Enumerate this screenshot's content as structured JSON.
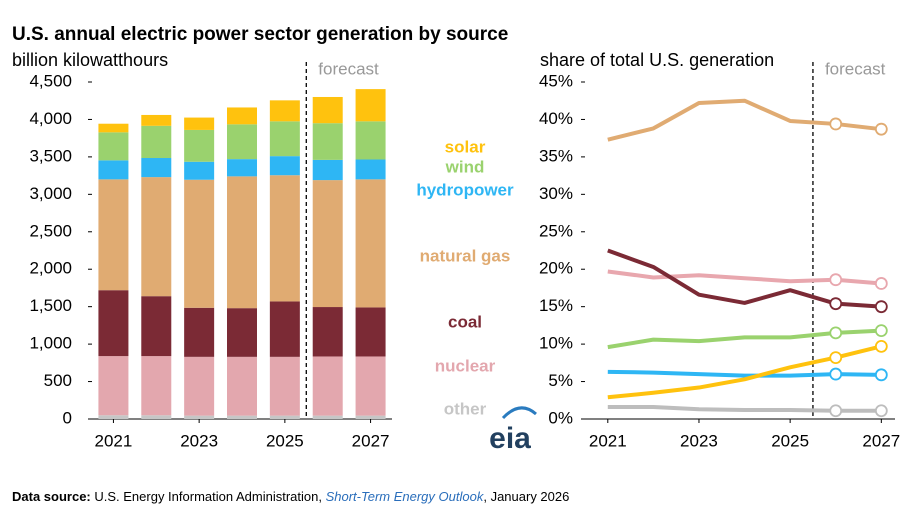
{
  "chart_data": [
    {
      "type": "stacked_bar",
      "title": "U.S. annual electric power sector generation by source",
      "subtitle": "billion kilowatthours",
      "annotation": "forecast",
      "forecast_from": 2026,
      "x": [
        2021,
        2022,
        2023,
        2024,
        2025,
        2026,
        2027
      ],
      "xlim": [
        2020.5,
        2027.5
      ],
      "xticks": [
        2021,
        2023,
        2025,
        2027
      ],
      "ylim": [
        0,
        4500
      ],
      "yticks": [
        0,
        500,
        {
          "value": 1000,
          "label": "1,000"
        },
        {
          "value": 1500,
          "label": "1,500"
        },
        {
          "value": 2000,
          "label": "2,000"
        },
        {
          "value": 2500,
          "label": "2,500"
        },
        {
          "value": 3000,
          "label": "3,000"
        },
        {
          "value": 3500,
          "label": "3,500"
        },
        {
          "value": 4000,
          "label": "4,000"
        },
        {
          "value": 4500,
          "label": "4,500"
        }
      ],
      "legend": "right",
      "series": [
        {
          "name": "other",
          "color": "#c6c6c6",
          "values": [
            50,
            50,
            45,
            45,
            45,
            45,
            45
          ]
        },
        {
          "name": "nuclear",
          "color": "#e3a7ae",
          "values": [
            790,
            790,
            785,
            785,
            785,
            790,
            790
          ]
        },
        {
          "name": "coal",
          "color": "#7b2a35",
          "values": [
            880,
            800,
            655,
            650,
            740,
            660,
            655
          ]
        },
        {
          "name": "natural gas",
          "color": "#e0ab72",
          "values": [
            1480,
            1590,
            1710,
            1760,
            1685,
            1695,
            1710
          ]
        },
        {
          "name": "hydropower",
          "color": "#2eb6f4",
          "values": [
            254,
            255,
            240,
            230,
            255,
            270,
            265
          ]
        },
        {
          "name": "wind",
          "color": "#9ad26e",
          "values": [
            374,
            430,
            425,
            465,
            465,
            490,
            510
          ]
        },
        {
          "name": "solar",
          "color": "#ffc20e",
          "values": [
            115,
            145,
            165,
            225,
            280,
            350,
            430
          ]
        }
      ]
    },
    {
      "type": "line",
      "subtitle": "share of total U.S. generation",
      "annotation": "forecast",
      "forecast_from": 2026,
      "x": [
        2021,
        2022,
        2023,
        2024,
        2025,
        2026,
        2027
      ],
      "xlim": [
        2020.5,
        2027.3
      ],
      "xticks": [
        2021,
        2023,
        2025,
        2027
      ],
      "ylim": [
        0,
        45
      ],
      "yticks": [
        {
          "value": 0,
          "label": "0%"
        },
        {
          "value": 5,
          "label": "5%"
        },
        {
          "value": 10,
          "label": "10%"
        },
        {
          "value": 15,
          "label": "15%"
        },
        {
          "value": 20,
          "label": "20%"
        },
        {
          "value": 25,
          "label": "25%"
        },
        {
          "value": 30,
          "label": "30%"
        },
        {
          "value": 35,
          "label": "35%"
        },
        {
          "value": 40,
          "label": "40%"
        },
        {
          "value": 45,
          "label": "45%"
        }
      ],
      "series": [
        {
          "color": "#bdbdbd",
          "values": [
            1.6,
            1.6,
            1.3,
            1.2,
            1.2,
            1.1,
            1.1
          ]
        },
        {
          "color": "#e8a7ae",
          "values": [
            19.7,
            18.9,
            19.2,
            18.8,
            18.4,
            18.6,
            18.1
          ]
        },
        {
          "color": "#7b2a35",
          "values": [
            22.5,
            20.3,
            16.6,
            15.5,
            17.2,
            15.4,
            15.0
          ]
        },
        {
          "color": "#e0ab72",
          "values": [
            37.3,
            38.8,
            42.2,
            42.5,
            39.8,
            39.4,
            38.7
          ]
        },
        {
          "color": "#2eb6f4",
          "values": [
            6.3,
            6.2,
            6.0,
            5.8,
            5.8,
            6.0,
            5.9
          ]
        },
        {
          "color": "#9ad26e",
          "values": [
            9.6,
            10.6,
            10.4,
            10.9,
            10.9,
            11.5,
            11.8
          ]
        },
        {
          "color": "#ffc20e",
          "values": [
            2.9,
            3.5,
            4.2,
            5.3,
            6.9,
            8.2,
            9.7
          ]
        }
      ]
    }
  ],
  "logo": "eia",
  "source": {
    "label": "Data source:",
    "before": " U.S. Energy Information Administration, ",
    "title": "Short-Term Energy Outlook",
    "after": ", January 2026"
  }
}
